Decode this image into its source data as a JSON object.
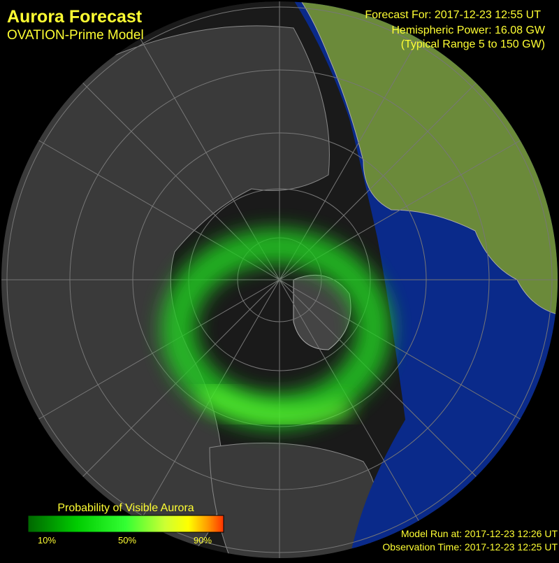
{
  "header": {
    "title": "Aurora Forecast",
    "subtitle": "OVATION-Prime Model"
  },
  "forecast": {
    "time": "Forecast For: 2017-12-23 12:55 UT",
    "power": "Hemispheric Power: 16.08 GW",
    "range": "(Typical Range 5 to 150 GW)"
  },
  "colorbar": {
    "title": "Probability of Visible Aurora",
    "labels": [
      "10%",
      "50%",
      "90%"
    ]
  },
  "footer": {
    "model_run": "Model Run at: 2017-12-23 12:26 UT",
    "observation": "Observation Time: 2017-12-23 12:25 UT"
  }
}
